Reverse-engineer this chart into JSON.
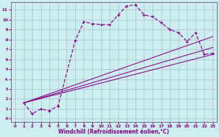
{
  "xlabel": "Windchill (Refroidissement éolien,°C)",
  "bg_color": "#cceef0",
  "line_color": "#880088",
  "grid_color": "#aabbcc",
  "x_ticks": [
    0,
    1,
    2,
    3,
    4,
    5,
    6,
    7,
    8,
    9,
    10,
    11,
    12,
    13,
    14,
    15,
    16,
    17,
    18,
    19,
    20,
    21,
    22,
    23
  ],
  "y_ticks": [
    0,
    1,
    2,
    3,
    4,
    5,
    6,
    7,
    8,
    9,
    10,
    11
  ],
  "xlim": [
    -0.5,
    23.5
  ],
  "ylim": [
    -0.3,
    11.8
  ],
  "main_x": [
    1,
    2,
    3,
    4,
    5,
    7,
    8,
    9,
    10,
    11,
    12,
    13,
    14,
    15,
    16,
    17,
    18,
    19,
    20,
    21,
    22,
    23
  ],
  "main_y": [
    1.6,
    0.5,
    1.0,
    0.8,
    1.3,
    7.9,
    9.8,
    9.6,
    9.5,
    9.5,
    10.5,
    11.4,
    11.5,
    10.5,
    10.3,
    9.7,
    9.0,
    8.7,
    7.8,
    8.7,
    6.5,
    6.6
  ],
  "line1_x": [
    1,
    23
  ],
  "line1_y": [
    1.6,
    8.3
  ],
  "line2_x": [
    1,
    23
  ],
  "line2_y": [
    1.6,
    7.2
  ],
  "line3_x": [
    1,
    23
  ],
  "line3_y": [
    1.6,
    6.5
  ]
}
